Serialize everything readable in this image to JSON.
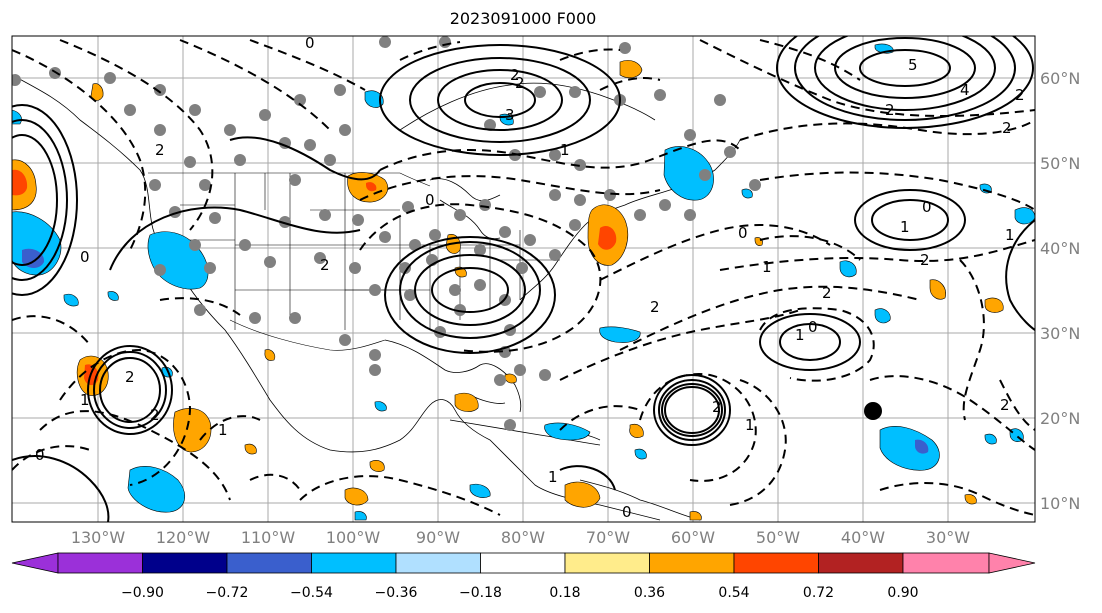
{
  "title": "2023091000 F000",
  "lon_labels": [
    "130°W",
    "120°W",
    "110°W",
    "100°W",
    "90°W",
    "80°W",
    "70°W",
    "60°W",
    "50°W",
    "40°W",
    "30°W"
  ],
  "lat_labels": [
    "60°N",
    "50°N",
    "40°N",
    "30°N",
    "20°N",
    "10°N"
  ],
  "colorbar": {
    "ticks": [
      "−0.90",
      "−0.72",
      "−0.54",
      "−0.36",
      "−0.18",
      "0.18",
      "0.36",
      "0.54",
      "0.72",
      "0.90"
    ],
    "colors": [
      "#9b30d9",
      "#00008b",
      "#3a5fcd",
      "#00bfff",
      "#b0e0ff",
      "#ffffff",
      "#ffec8b",
      "#ffa500",
      "#ff4500",
      "#b22222",
      "#ff82ab"
    ]
  },
  "contour_labels": [
    "0",
    "2",
    "2",
    "3",
    "5",
    "4",
    "2",
    "2",
    "2",
    "1",
    "2",
    "0",
    "1",
    "0",
    "2",
    "1",
    "2",
    "0",
    "2",
    "1",
    "2",
    "1",
    "0",
    "1",
    "2",
    "2",
    "1",
    "1",
    "0",
    "2",
    "0",
    "0",
    "1",
    "2"
  ],
  "colors": {
    "positive_shading": "#ffa500",
    "negative_shading": "#00bfff",
    "station_dot": "#808080",
    "marker": "#000000"
  }
}
